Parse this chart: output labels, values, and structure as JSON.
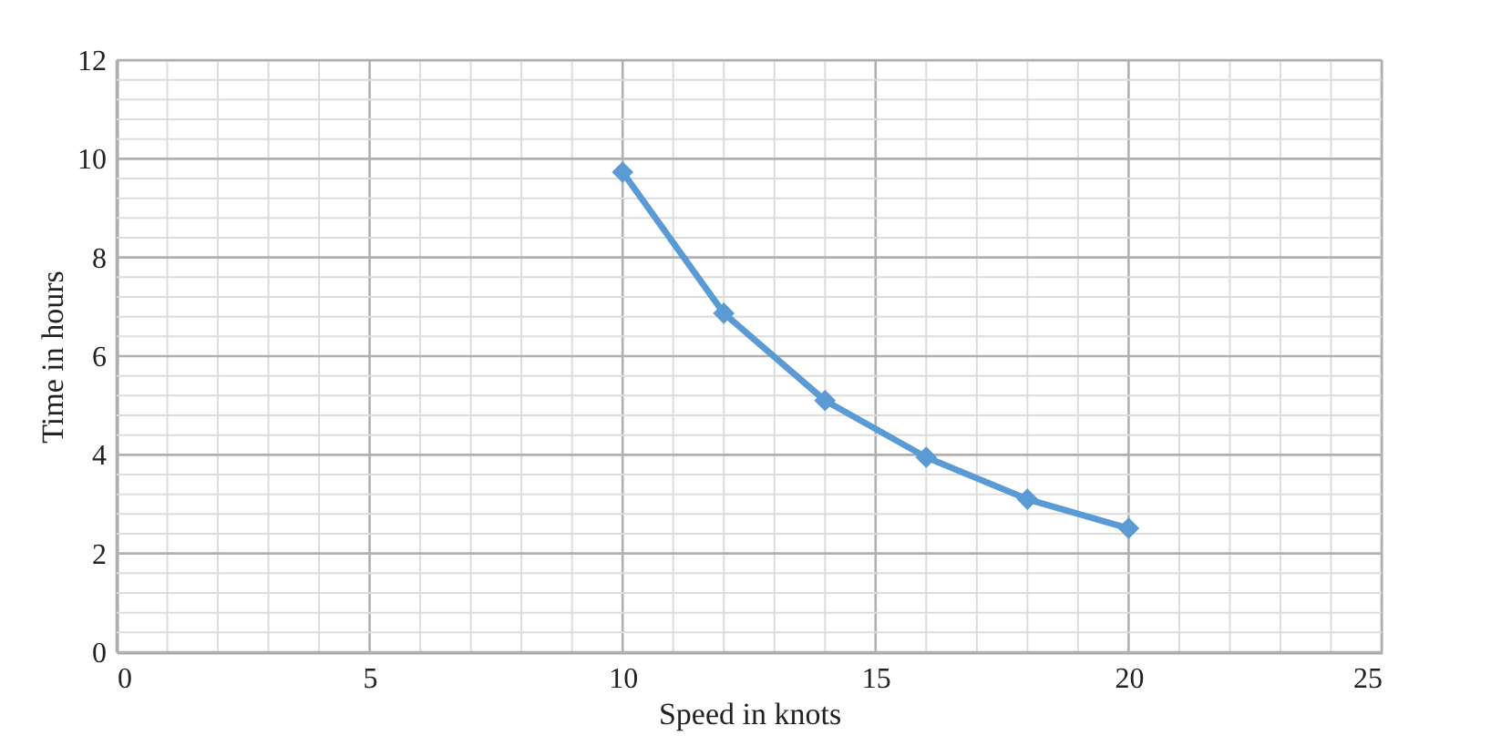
{
  "chart_data": {
    "type": "line",
    "xlabel": "Speed in knots",
    "ylabel": "Time in hours",
    "x": [
      10,
      12,
      14,
      16,
      18,
      20
    ],
    "series": [
      {
        "color": "#5b9bd5",
        "values": [
          9.73,
          6.87,
          5.1,
          3.95,
          3.1,
          2.51
        ]
      }
    ],
    "xlim": [
      0,
      25
    ],
    "ylim": [
      0,
      12
    ],
    "xticks": [
      0,
      {
        "value": 1,
        "label": null
      },
      {
        "value": 2,
        "label": null
      },
      {
        "value": 3,
        "label": null
      },
      {
        "value": 4,
        "label": null
      },
      5,
      {
        "value": 6,
        "label": null
      },
      {
        "value": 7,
        "label": null
      },
      {
        "value": 8,
        "label": null
      },
      {
        "value": 9,
        "label": null
      },
      10,
      {
        "value": 11,
        "label": null
      },
      {
        "value": 12,
        "label": null
      },
      {
        "value": 13,
        "label": null
      },
      {
        "value": 14,
        "label": null
      },
      15,
      {
        "value": 16,
        "label": null
      },
      {
        "value": 17,
        "label": null
      },
      {
        "value": 18,
        "label": null
      },
      {
        "value": 19,
        "label": null
      },
      20,
      {
        "value": 21,
        "label": null
      },
      {
        "value": 22,
        "label": null
      },
      {
        "value": 23,
        "label": null
      },
      {
        "value": 24,
        "label": null
      },
      25
    ],
    "yticks": [
      0,
      {
        "value": 0.4,
        "label": null
      },
      {
        "value": 0.8,
        "label": null
      },
      {
        "value": 1.2,
        "label": null
      },
      {
        "value": 1.6,
        "label": null
      },
      2,
      {
        "value": 2.4,
        "label": null
      },
      {
        "value": 2.8,
        "label": null
      },
      {
        "value": 3.2,
        "label": null
      },
      {
        "value": 3.6,
        "label": null
      },
      4,
      {
        "value": 4.4,
        "label": null
      },
      {
        "value": 4.8,
        "label": null
      },
      {
        "value": 5.2,
        "label": null
      },
      {
        "value": 5.6,
        "label": null
      },
      6,
      {
        "value": 6.4,
        "label": null
      },
      {
        "value": 6.8,
        "label": null
      },
      {
        "value": 7.2,
        "label": null
      },
      {
        "value": 7.6,
        "label": null
      },
      8,
      {
        "value": 8.4,
        "label": null
      },
      {
        "value": 8.8,
        "label": null
      },
      {
        "value": 9.2,
        "label": null
      },
      {
        "value": 9.6,
        "label": null
      },
      10,
      {
        "value": 10.4,
        "label": null
      },
      {
        "value": 10.8,
        "label": null
      },
      {
        "value": 11.2,
        "label": null
      },
      {
        "value": 11.6,
        "label": null
      },
      12
    ],
    "grid": true,
    "marker": "diamond",
    "line_style": "solid"
  }
}
